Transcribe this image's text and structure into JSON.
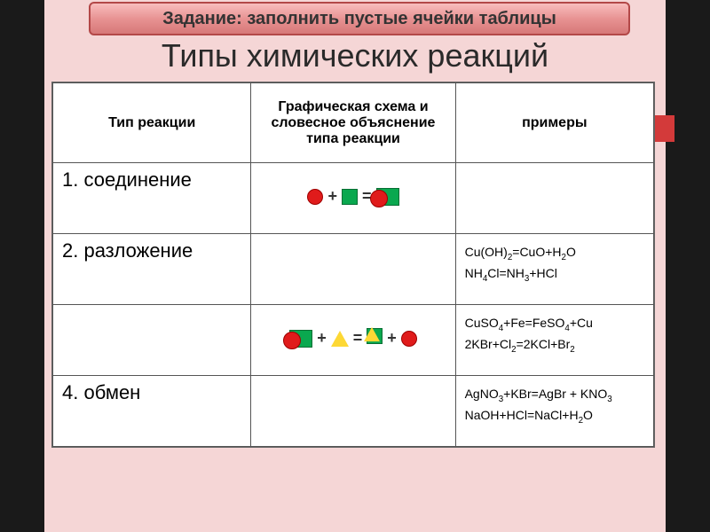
{
  "banner": "Задание: заполнить пустые ячейки таблицы",
  "title": "Типы химических реакций",
  "headers": {
    "col1": "Тип реакции",
    "col2": "Графическая схема и словесное объяснение типа реакции",
    "col3": "примеры"
  },
  "rows": [
    {
      "label": "1. соединение",
      "schema": "shapes1",
      "example": ""
    },
    {
      "label": "2. разложение",
      "schema": "",
      "example": "Cu(OH)₂=CuO+H₂O\nNH₄Cl=NH₃+HCl"
    },
    {
      "label": "",
      "schema": "shapes3",
      "example": "CuSO₄+Fe=FeSO₄+Cu\n2KBr+Cl₂=2KCl+Br₂"
    },
    {
      "label": "4. обмен",
      "schema": "",
      "example": "AgNO₃+KBr=AgBr + KNO₃\nNaOH+HCl=NaCl+H₂O"
    }
  ],
  "colors": {
    "banner_border": "#b34848",
    "circle": "#e01b1b",
    "square": "#0aa84f",
    "triangle": "#fdd835",
    "background": "#f5d6d6",
    "side": "#1a1a1a"
  }
}
